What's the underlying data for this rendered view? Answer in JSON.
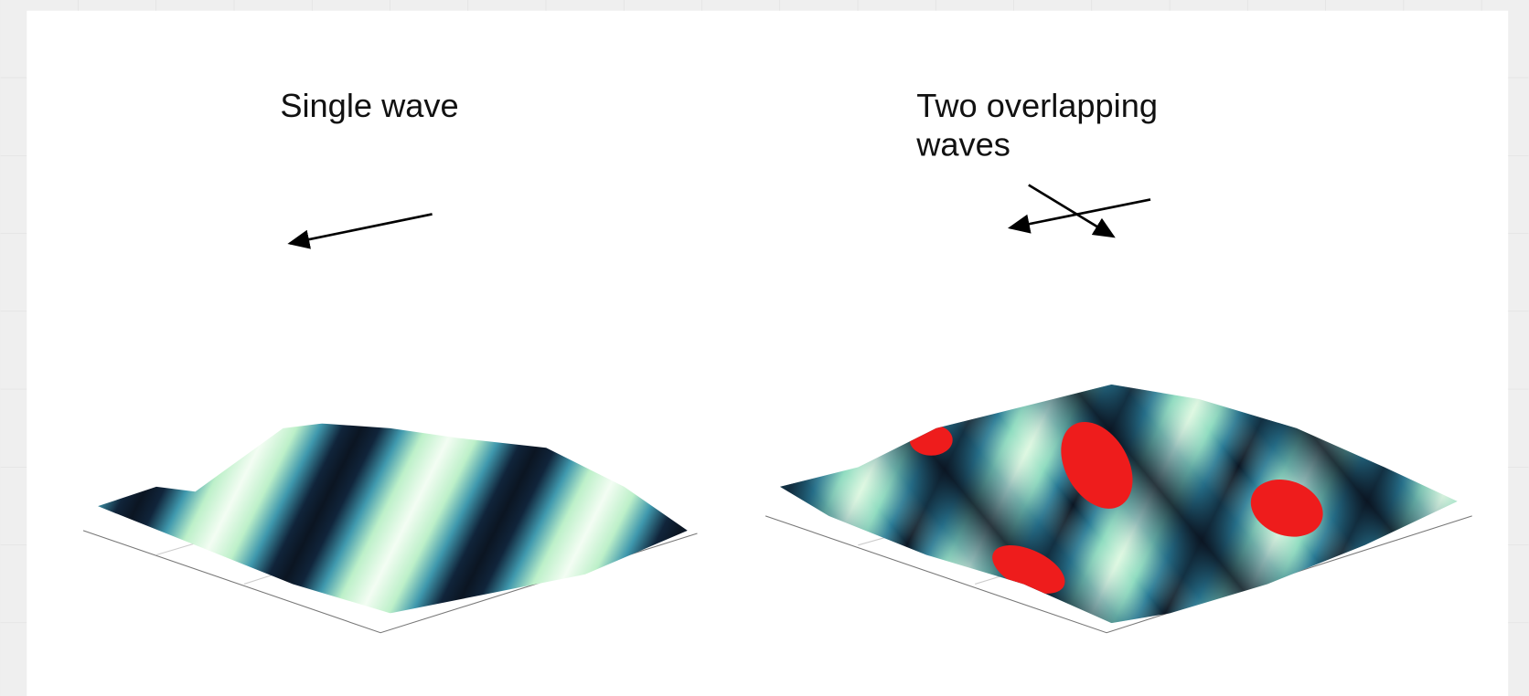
{
  "left_panel": {
    "title": "Single wave"
  },
  "right_panel": {
    "title_lines": [
      "Two overlapping",
      "waves"
    ]
  }
}
